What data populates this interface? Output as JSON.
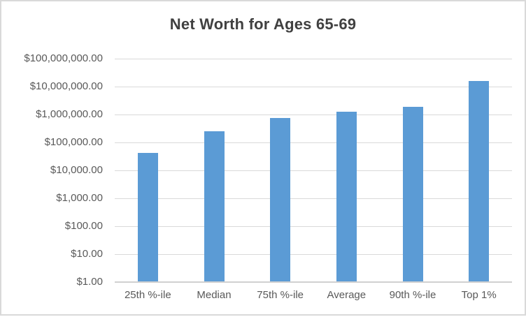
{
  "chart_data": {
    "type": "bar",
    "title": "Net Worth for Ages 65-69",
    "categories": [
      "25th %-ile",
      "Median",
      "75th %-ile",
      "Average",
      "90th %-ile",
      "Top 1%"
    ],
    "values": [
      42000,
      250000,
      750000,
      1230000,
      1900000,
      16000000
    ],
    "y_ticks_top_to_bottom": [
      "$100,000,000.00",
      "$10,000,000.00",
      "$1,000,000.00",
      "$100,000.00",
      "$10,000.00",
      "$1,000.00",
      "$100.00",
      "$10.00",
      "$1.00"
    ],
    "y_scale": "log",
    "ylim": [
      1,
      100000000
    ],
    "xlabel": "",
    "ylabel": "",
    "legend": "none",
    "grid": "horizontal",
    "colors": {
      "bar_fill": "#5B9BD5",
      "gridline": "#D9D9D9",
      "axis_line": "#D0D0D0",
      "title_text": "#404040",
      "tick_text": "#595959",
      "chart_border": "#D9D9D9",
      "background": "#FFFFFF"
    }
  }
}
